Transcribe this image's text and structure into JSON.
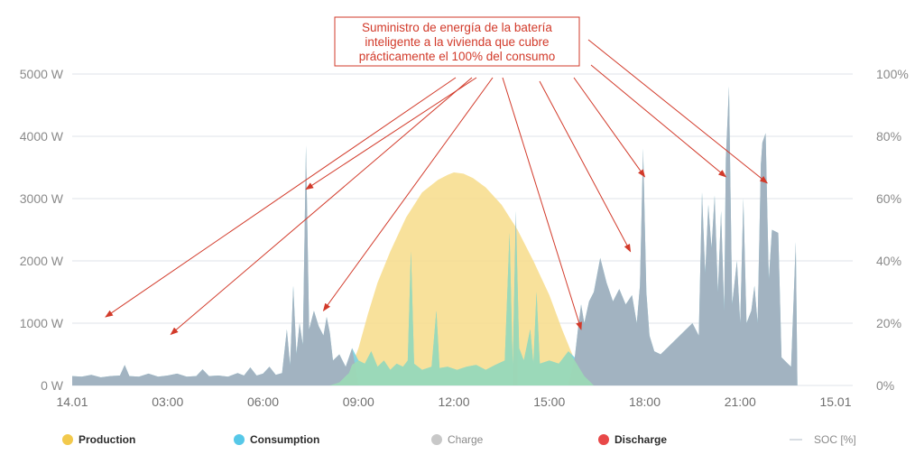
{
  "chart_data": {
    "type": "area",
    "x_ticks": [
      "14.01",
      "03:00",
      "06:00",
      "09:00",
      "12:00",
      "15:00",
      "18:00",
      "21:00",
      "15.01"
    ],
    "x_range_hours": [
      0,
      24
    ],
    "y_left": {
      "ticks": [
        "0 W",
        "1000 W",
        "2000 W",
        "3000 W",
        "4000 W",
        "5000 W"
      ],
      "range": [
        0,
        5000
      ]
    },
    "y_right": {
      "ticks": [
        "0%",
        "20%",
        "40%",
        "60%",
        "80%",
        "100%"
      ],
      "range": [
        0,
        100
      ]
    },
    "grid": true,
    "legend_position": "bottom",
    "legend": [
      {
        "label": "Production",
        "color": "#f2c94c",
        "marker": "dot"
      },
      {
        "label": "Consumption",
        "color": "#56c8e8",
        "marker": "dot"
      },
      {
        "label": "Charge",
        "color": "#c8c8c8",
        "marker": "dot"
      },
      {
        "label": "Discharge",
        "color": "#e84848",
        "marker": "dot"
      },
      {
        "label": "SOC [%]",
        "color": "#d8dde3",
        "marker": "line"
      }
    ],
    "colors": {
      "production": "#f7dc8a",
      "consumption": "#7fd3df",
      "discharge": "#a3b1bf",
      "self_consumption": "#9cd9b6",
      "grid": "#dfe3e8",
      "annotation": "#d23a2a"
    },
    "annotation": {
      "lines": [
        "Suministro de energía de la batería",
        "inteligente a la vivienda que cubre",
        "prácticamente el 100% del consumo"
      ],
      "targets": [
        {
          "h": 1.05,
          "w": 1100
        },
        {
          "h": 3.1,
          "w": 820
        },
        {
          "h": 7.35,
          "w": 3150
        },
        {
          "h": 7.9,
          "w": 1200
        },
        {
          "h": 16.0,
          "w": 900
        },
        {
          "h": 17.55,
          "w": 2150
        },
        {
          "h": 18.0,
          "w": 3350
        },
        {
          "h": 20.55,
          "w": 3350
        },
        {
          "h": 21.85,
          "w": 3250
        }
      ]
    },
    "production": [
      [
        0,
        0
      ],
      [
        8.1,
        0
      ],
      [
        8.4,
        50
      ],
      [
        8.7,
        200
      ],
      [
        9.0,
        600
      ],
      [
        9.3,
        1150
      ],
      [
        9.6,
        1650
      ],
      [
        10.0,
        2150
      ],
      [
        10.5,
        2700
      ],
      [
        11.0,
        3100
      ],
      [
        11.5,
        3300
      ],
      [
        11.8,
        3380
      ],
      [
        12.0,
        3420
      ],
      [
        12.3,
        3400
      ],
      [
        12.6,
        3330
      ],
      [
        13.0,
        3180
      ],
      [
        13.5,
        2900
      ],
      [
        14.0,
        2500
      ],
      [
        14.5,
        2000
      ],
      [
        15.0,
        1450
      ],
      [
        15.4,
        900
      ],
      [
        15.8,
        400
      ],
      [
        16.1,
        150
      ],
      [
        16.4,
        0
      ],
      [
        24,
        0
      ]
    ],
    "consumption": [
      [
        0,
        150
      ],
      [
        0.3,
        140
      ],
      [
        0.6,
        170
      ],
      [
        0.9,
        130
      ],
      [
        1.2,
        150
      ],
      [
        1.5,
        160
      ],
      [
        1.65,
        330
      ],
      [
        1.8,
        150
      ],
      [
        2.1,
        140
      ],
      [
        2.4,
        190
      ],
      [
        2.7,
        140
      ],
      [
        3.0,
        160
      ],
      [
        3.3,
        190
      ],
      [
        3.6,
        140
      ],
      [
        3.9,
        150
      ],
      [
        4.1,
        260
      ],
      [
        4.3,
        150
      ],
      [
        4.6,
        160
      ],
      [
        4.9,
        140
      ],
      [
        5.2,
        200
      ],
      [
        5.4,
        160
      ],
      [
        5.6,
        290
      ],
      [
        5.8,
        160
      ],
      [
        6.0,
        190
      ],
      [
        6.2,
        300
      ],
      [
        6.4,
        170
      ],
      [
        6.6,
        200
      ],
      [
        6.75,
        900
      ],
      [
        6.85,
        320
      ],
      [
        6.95,
        1600
      ],
      [
        7.05,
        500
      ],
      [
        7.15,
        1000
      ],
      [
        7.25,
        650
      ],
      [
        7.35,
        3850
      ],
      [
        7.45,
        900
      ],
      [
        7.6,
        1200
      ],
      [
        7.75,
        950
      ],
      [
        7.9,
        800
      ],
      [
        8.0,
        1100
      ],
      [
        8.1,
        850
      ],
      [
        8.2,
        400
      ],
      [
        8.4,
        500
      ],
      [
        8.6,
        300
      ],
      [
        8.8,
        600
      ],
      [
        9.0,
        400
      ],
      [
        9.2,
        350
      ],
      [
        9.4,
        550
      ],
      [
        9.6,
        300
      ],
      [
        9.8,
        400
      ],
      [
        10.0,
        250
      ],
      [
        10.2,
        350
      ],
      [
        10.4,
        300
      ],
      [
        10.55,
        400
      ],
      [
        10.65,
        2150
      ],
      [
        10.75,
        350
      ],
      [
        11.0,
        250
      ],
      [
        11.3,
        300
      ],
      [
        11.45,
        1200
      ],
      [
        11.55,
        280
      ],
      [
        11.8,
        300
      ],
      [
        12.1,
        250
      ],
      [
        12.4,
        300
      ],
      [
        12.7,
        330
      ],
      [
        13.0,
        250
      ],
      [
        13.3,
        330
      ],
      [
        13.6,
        400
      ],
      [
        13.75,
        2450
      ],
      [
        13.85,
        300
      ],
      [
        13.95,
        2800
      ],
      [
        14.05,
        600
      ],
      [
        14.2,
        400
      ],
      [
        14.4,
        900
      ],
      [
        14.5,
        350
      ],
      [
        14.6,
        1500
      ],
      [
        14.7,
        350
      ],
      [
        15.0,
        400
      ],
      [
        15.3,
        350
      ],
      [
        15.6,
        550
      ],
      [
        15.8,
        450
      ],
      [
        15.9,
        900
      ],
      [
        16.0,
        1300
      ],
      [
        16.1,
        1000
      ],
      [
        16.25,
        1350
      ],
      [
        16.4,
        1500
      ],
      [
        16.6,
        2050
      ],
      [
        16.8,
        1650
      ],
      [
        17.0,
        1350
      ],
      [
        17.2,
        1550
      ],
      [
        17.4,
        1300
      ],
      [
        17.6,
        1450
      ],
      [
        17.75,
        1000
      ],
      [
        17.85,
        1600
      ],
      [
        17.95,
        3800
      ],
      [
        18.05,
        1500
      ],
      [
        18.15,
        800
      ],
      [
        18.3,
        550
      ],
      [
        18.5,
        500
      ],
      [
        18.7,
        600
      ],
      [
        18.9,
        700
      ],
      [
        19.1,
        800
      ],
      [
        19.3,
        900
      ],
      [
        19.5,
        1000
      ],
      [
        19.7,
        800
      ],
      [
        19.8,
        3100
      ],
      [
        19.9,
        1800
      ],
      [
        20.0,
        2900
      ],
      [
        20.1,
        2200
      ],
      [
        20.2,
        3050
      ],
      [
        20.3,
        1500
      ],
      [
        20.4,
        2800
      ],
      [
        20.5,
        1200
      ],
      [
        20.55,
        3650
      ],
      [
        20.65,
        4800
      ],
      [
        20.75,
        1300
      ],
      [
        20.9,
        2000
      ],
      [
        21.0,
        1000
      ],
      [
        21.1,
        3000
      ],
      [
        21.2,
        1000
      ],
      [
        21.35,
        1200
      ],
      [
        21.45,
        1600
      ],
      [
        21.55,
        1000
      ],
      [
        21.65,
        3550
      ],
      [
        21.7,
        3900
      ],
      [
        21.8,
        4050
      ],
      [
        21.9,
        1700
      ],
      [
        22.0,
        2500
      ],
      [
        22.2,
        2450
      ],
      [
        22.3,
        450
      ],
      [
        22.5,
        350
      ],
      [
        22.6,
        300
      ],
      [
        22.75,
        2300
      ],
      [
        22.8,
        0
      ],
      [
        24,
        0
      ]
    ]
  }
}
